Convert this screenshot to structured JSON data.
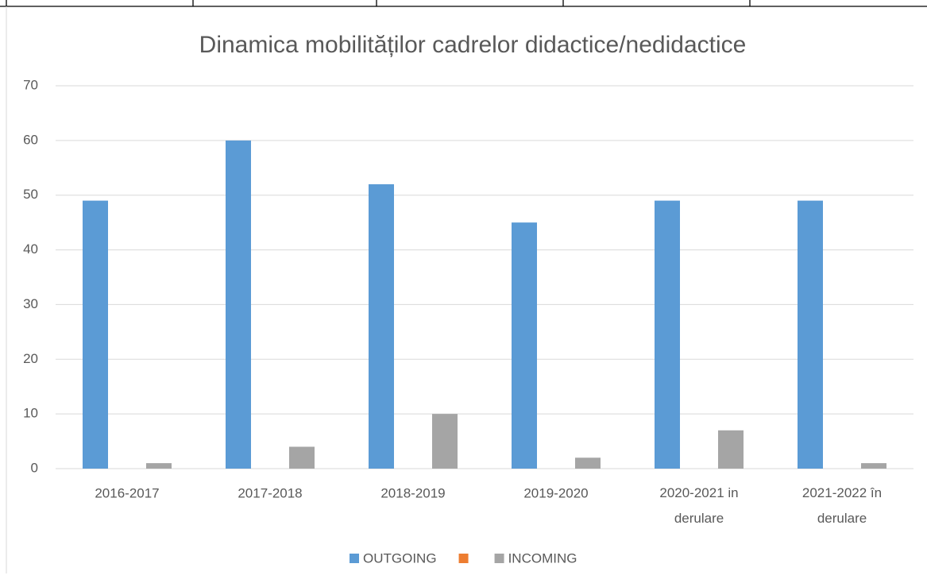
{
  "chart_data": {
    "type": "bar",
    "title": "Dinamica mobilităților cadrelor didactice/nedidactice",
    "categories": [
      "2016-2017",
      "2017-2018",
      "2018-2019",
      "2019-2020",
      "2020-2021 in derulare",
      "2021-2022 în derulare"
    ],
    "series": [
      {
        "name": "OUTGOING",
        "color": "#5b9bd5",
        "values": [
          49,
          60,
          52,
          45,
          49,
          49
        ]
      },
      {
        "name": null,
        "color": "#ed7d31",
        "values": [
          null,
          null,
          null,
          null,
          null,
          null
        ]
      },
      {
        "name": "INCOMING",
        "color": "#a5a5a5",
        "values": [
          1,
          4,
          10,
          2,
          7,
          1
        ]
      }
    ],
    "ylim": [
      0,
      70
    ],
    "yticks": [
      0,
      10,
      20,
      30,
      40,
      50,
      60,
      70
    ],
    "grid": true,
    "legend": "bottom"
  }
}
